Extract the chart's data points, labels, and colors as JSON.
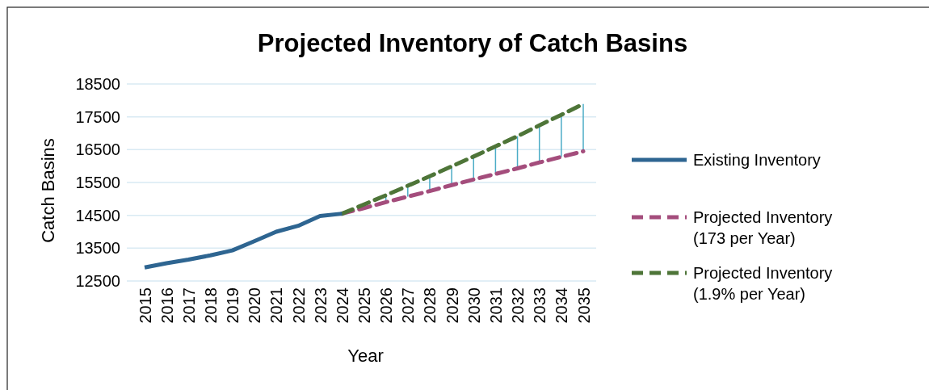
{
  "chart_data": {
    "type": "line",
    "title": "Projected Inventory of Catch Basins",
    "xlabel": "Year",
    "ylabel": "Catch Basins",
    "categories": [
      "2015",
      "2016",
      "2017",
      "2018",
      "2019",
      "2020",
      "2021",
      "2022",
      "2023",
      "2024",
      "2025",
      "2026",
      "2027",
      "2028",
      "2029",
      "2030",
      "2031",
      "2032",
      "2033",
      "2034",
      "2035"
    ],
    "series": [
      {
        "name": "Existing Inventory",
        "color": "#2e6591",
        "line_style": "solid",
        "values": [
          12910,
          13040,
          13150,
          13280,
          13430,
          13710,
          14000,
          14180,
          14480,
          14550,
          null,
          null,
          null,
          null,
          null,
          null,
          null,
          null,
          null,
          null,
          null
        ]
      },
      {
        "name": "Projected Inventory (173 per Year)",
        "color": "#a44d7c",
        "line_style": "dashed",
        "values": [
          null,
          null,
          null,
          null,
          null,
          null,
          null,
          null,
          null,
          14550,
          14720,
          14900,
          15070,
          15240,
          15420,
          15590,
          15760,
          15930,
          16110,
          16280,
          16450
        ]
      },
      {
        "name": "Projected Inventory (1.9% per Year)",
        "color": "#4e7538",
        "line_style": "dashed",
        "values": [
          null,
          null,
          null,
          null,
          null,
          null,
          null,
          null,
          null,
          14550,
          14830,
          15110,
          15400,
          15690,
          15990,
          16290,
          16600,
          16910,
          17240,
          17560,
          17890
        ]
      }
    ],
    "ylim": [
      12500,
      18500
    ],
    "yticks": [
      12500,
      13500,
      14500,
      15500,
      16500,
      17500,
      18500
    ],
    "grid": "y",
    "legend": "right",
    "marker": "none"
  }
}
